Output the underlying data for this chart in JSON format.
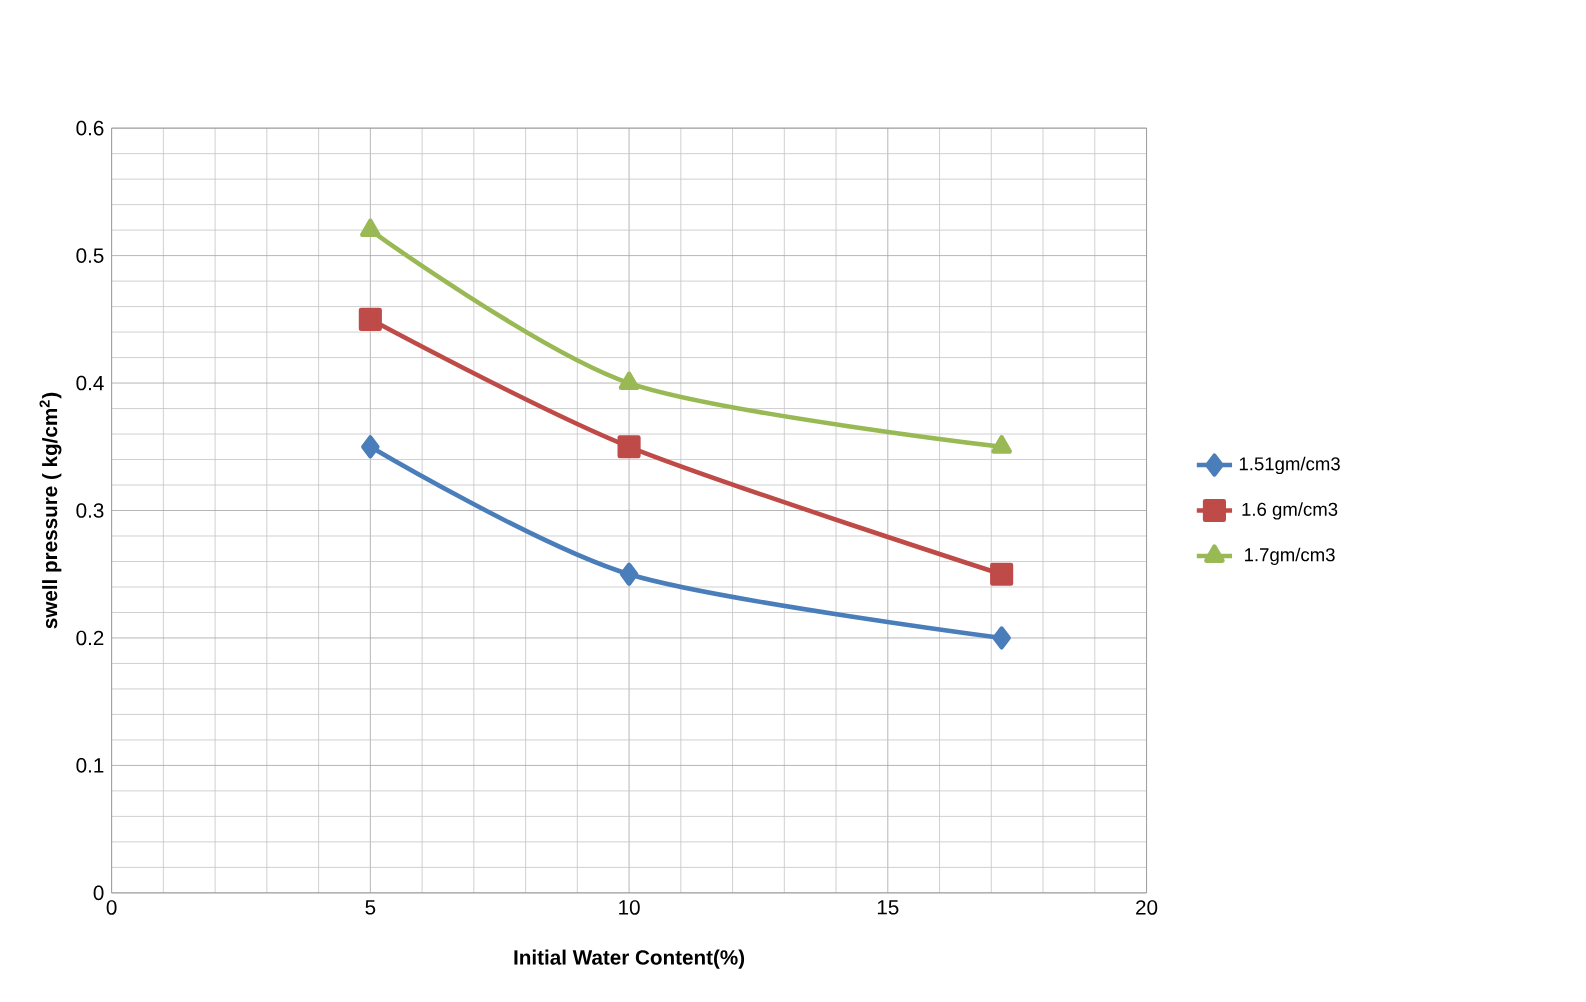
{
  "chart_data": {
    "type": "line",
    "xlabel": "Initial Water Content(%)",
    "ylabel": "swell pressure ( kg/cm$^{2}$)",
    "xlim": [
      0,
      20
    ],
    "xticks": [
      0,
      5,
      10,
      15,
      20
    ],
    "ylim": [
      0,
      0.6
    ],
    "yticks": [
      0,
      0.1,
      0.2,
      0.3,
      0.4,
      0.5,
      0.6
    ],
    "grid": true,
    "legend": "right",
    "series": [
      {
        "name": "1.51gm/cm3",
        "color": "#4a7ebb",
        "marker": "diamond",
        "x": [
          5,
          10,
          17.2
        ],
        "values": [
          0.35,
          0.25,
          0.2
        ]
      },
      {
        "name": "1.6 gm/cm3",
        "color": "#be4b48",
        "marker": "square",
        "x": [
          5,
          10,
          17.2
        ],
        "values": [
          0.45,
          0.35,
          0.25
        ]
      },
      {
        "name": "1.7gm/cm3",
        "color": "#98b954",
        "marker": "triangle",
        "x": [
          5,
          10,
          17.2
        ],
        "values": [
          0.52,
          0.4,
          0.35
        ]
      }
    ]
  }
}
